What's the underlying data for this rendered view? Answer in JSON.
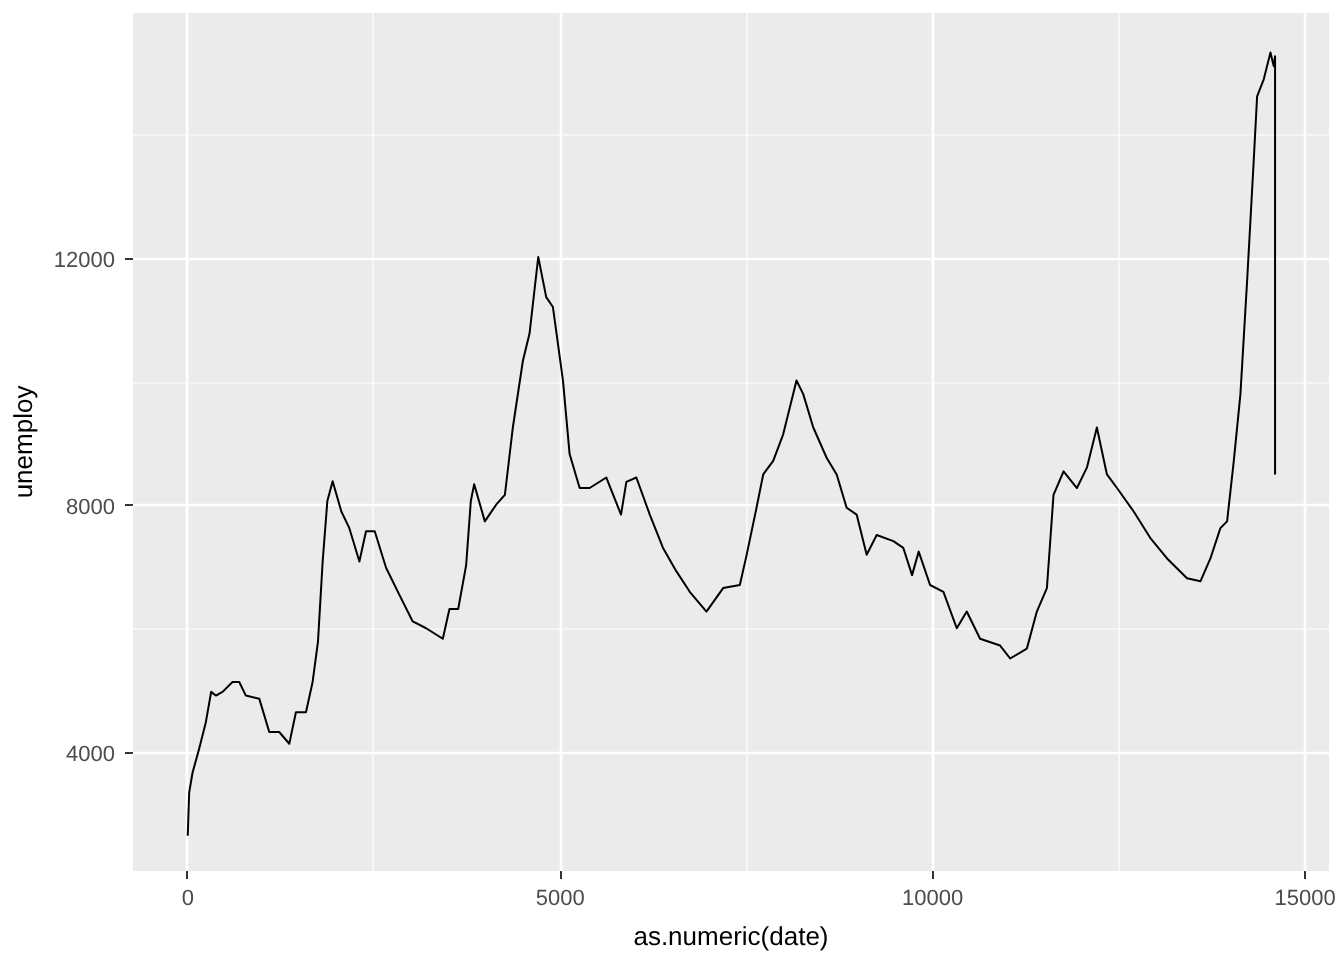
{
  "chart_data": {
    "type": "line",
    "xlabel": "as.numeric(date)",
    "ylabel": "unemploy",
    "xlim": [
      -735,
      15320
    ],
    "ylim": [
      2090,
      15980
    ],
    "xticks": [
      0,
      5000,
      10000,
      15000
    ],
    "yticks": [
      4000,
      8000,
      12000
    ],
    "grid": true,
    "line_style": "solid",
    "marker": "none",
    "series": [
      {
        "color": "#000000",
        "x": [
          0,
          19,
          64,
          153,
          243,
          314,
          377,
          467,
          601,
          691,
          780,
          960,
          1094,
          1228,
          1363,
          1452,
          1587,
          1676,
          1748,
          1811,
          1874,
          1945,
          2062,
          2169,
          2304,
          2393,
          2510,
          2662,
          2841,
          3020,
          3200,
          3424,
          3513,
          3630,
          3737,
          3800,
          3845,
          3988,
          4140,
          4257,
          4364,
          4499,
          4588,
          4705,
          4812,
          4902,
          5037,
          5126,
          5261,
          5395,
          5619,
          5816,
          5888,
          6022,
          6202,
          6380,
          6560,
          6739,
          6963,
          7187,
          7411,
          7501,
          7635,
          7725,
          7859,
          7993,
          8172,
          8262,
          8397,
          8576,
          8711,
          8845,
          8979,
          9114,
          9248,
          9472,
          9606,
          9723,
          9812,
          9965,
          10144,
          10323,
          10457,
          10636,
          10905,
          11040,
          11264,
          11398,
          11533,
          11622,
          11757,
          11936,
          12070,
          12204,
          12339,
          12474,
          12698,
          12922,
          13146,
          13414,
          13594,
          13728,
          13862,
          13952,
          14042,
          14131,
          14221,
          14310,
          14355,
          14445,
          14534,
          14578,
          14596,
          14596
        ],
        "values": [
          2660,
          3360,
          3680,
          4070,
          4500,
          4990,
          4930,
          4990,
          5150,
          5150,
          4930,
          4880,
          4340,
          4340,
          4150,
          4660,
          4660,
          5150,
          5800,
          7100,
          8080,
          8400,
          7910,
          7640,
          7100,
          7590,
          7590,
          7000,
          6560,
          6130,
          6020,
          5850,
          6330,
          6330,
          7040,
          8080,
          8350,
          7750,
          8020,
          8180,
          9270,
          10350,
          10790,
          12030,
          11380,
          11220,
          10030,
          8840,
          8290,
          8290,
          8460,
          7860,
          8390,
          8460,
          7860,
          7320,
          6940,
          6610,
          6290,
          6670,
          6720,
          7200,
          7970,
          8510,
          8730,
          9160,
          10030,
          9810,
          9270,
          8780,
          8510,
          7970,
          7860,
          7210,
          7530,
          7430,
          7320,
          6880,
          7260,
          6720,
          6610,
          6020,
          6290,
          5850,
          5740,
          5530,
          5690,
          6290,
          6670,
          8180,
          8560,
          8290,
          8620,
          9270,
          8510,
          8290,
          7910,
          7480,
          7150,
          6830,
          6780,
          7150,
          7640,
          7750,
          8730,
          9810,
          11650,
          13600,
          14630,
          14910,
          15340,
          15120,
          15280,
          8510
        ]
      }
    ]
  }
}
